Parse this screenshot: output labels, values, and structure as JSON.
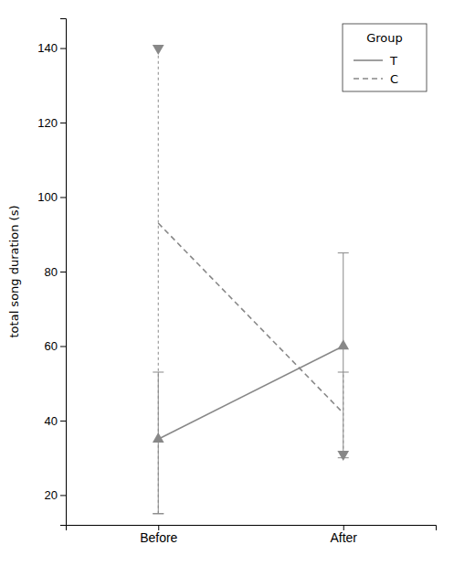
{
  "chart_data": {
    "type": "line",
    "categories": [
      "Before",
      "After"
    ],
    "color": "#888888",
    "ylabel": "total song duration (s)",
    "ylim": [
      12,
      148
    ],
    "yticks": [
      20,
      40,
      60,
      80,
      100,
      120,
      140
    ],
    "grid": false,
    "legend": "upper right",
    "legend_title": "Group",
    "series": [
      {
        "name": "T",
        "line_style": "solid",
        "marker": "triangle-up",
        "values": [
          35,
          60
        ],
        "err_low": [
          15,
          30
        ],
        "err_high": [
          53,
          85
        ],
        "marker_values": [
          35,
          60
        ]
      },
      {
        "name": "C",
        "line_style": "dashed",
        "marker": "triangle-down",
        "values": [
          93,
          42
        ],
        "err_low": [
          15,
          31
        ],
        "err_high": [
          140,
          53
        ],
        "marker_values": [
          140,
          31
        ]
      }
    ]
  }
}
